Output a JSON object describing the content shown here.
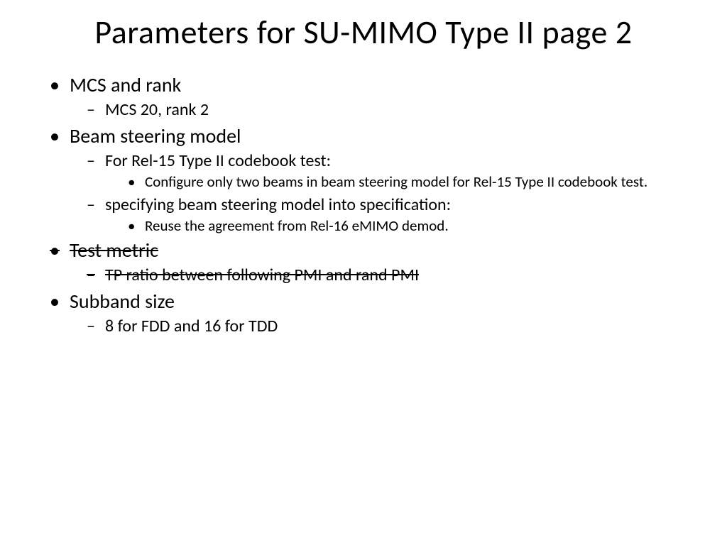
{
  "title": "Parameters for SU-MIMO Type II page 2",
  "items": [
    {
      "text": "MCS and rank",
      "strike": false,
      "children": [
        {
          "text": "MCS 20, rank 2",
          "strike": false,
          "children": []
        }
      ]
    },
    {
      "text": "Beam steering model",
      "strike": false,
      "children": [
        {
          "text": "For Rel-15 Type II codebook test:",
          "strike": false,
          "children": [
            {
              "text": "Configure only two beams in beam steering model for Rel-15 Type II codebook test.",
              "strike": false
            }
          ]
        },
        {
          "text": "specifying beam steering model into specification:",
          "strike": false,
          "children": [
            {
              "text": "Reuse the agreement from Rel-16 eMIMO demod.",
              "strike": false
            }
          ]
        }
      ]
    },
    {
      "text": "Test metric",
      "strike": true,
      "children": [
        {
          "text": "TP ratio between following PMI and rand PMI",
          "strike": true,
          "children": []
        }
      ]
    },
    {
      "text": "Subband size",
      "strike": false,
      "children": [
        {
          "text": "8 for FDD and 16 for TDD",
          "strike": false,
          "children": []
        }
      ]
    }
  ],
  "colors": {
    "background": "#ffffff",
    "text": "#000000"
  },
  "typography": {
    "title_fontsize": 46,
    "lvl1_fontsize": 28,
    "lvl2_fontsize": 24,
    "lvl3_fontsize": 21,
    "font_family": "Calibri"
  }
}
